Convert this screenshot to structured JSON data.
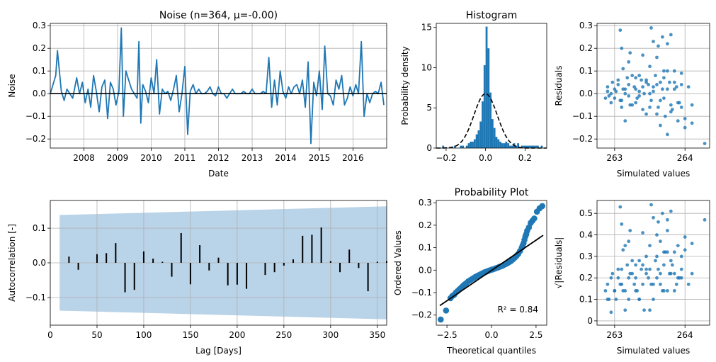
{
  "chart_data": [
    {
      "id": "noise",
      "type": "line",
      "title": "Noise (n=364, μ=-0.00)",
      "xlabel": "Date",
      "ylabel": "Noise",
      "xlim": [
        "2007-01-01",
        "2017-01-01"
      ],
      "ylim": [
        -0.24,
        0.31
      ],
      "x_ticks": [
        "2008",
        "2009",
        "2010",
        "2011",
        "2012",
        "2013",
        "2014",
        "2015",
        "2016"
      ],
      "y_ticks": [
        -0.2,
        -0.1,
        0.0,
        0.1,
        0.2,
        0.3
      ],
      "y_tick_labels": [
        "−0.2",
        "−0.1",
        "0.0",
        "0.1",
        "0.2",
        "0.3"
      ],
      "grid": true,
      "colors": {
        "series": "#1f77b4",
        "zero_line": "#000000"
      },
      "series": [
        {
          "x": [
            "2007-01-01",
            "2007-03-01",
            "2007-03-20",
            "2007-05-01",
            "2007-06-01",
            "2007-07-01",
            "2007-08-01",
            "2007-09-01",
            "2007-10-15",
            "2007-11-15",
            "2007-12-15",
            "2008-01-15",
            "2008-02-15",
            "2008-03-15",
            "2008-04-15",
            "2008-05-15",
            "2008-06-15",
            "2008-07-15",
            "2008-08-15",
            "2008-09-15",
            "2008-10-15",
            "2008-11-15",
            "2008-12-15",
            "2009-01-15",
            "2009-02-10",
            "2009-03-05",
            "2009-04-01",
            "2009-05-01",
            "2009-06-01",
            "2009-07-01",
            "2009-08-01",
            "2009-08-20",
            "2009-09-10",
            "2009-10-01",
            "2009-11-01",
            "2009-12-01",
            "2010-01-01",
            "2010-02-01",
            "2010-03-01",
            "2010-04-01",
            "2010-05-01",
            "2010-06-01",
            "2010-07-01",
            "2010-08-01",
            "2010-09-01",
            "2010-10-01",
            "2010-11-01",
            "2010-12-01",
            "2011-01-01",
            "2011-02-01",
            "2011-03-01",
            "2011-04-01",
            "2011-05-01",
            "2011-06-01",
            "2011-07-01",
            "2011-08-01",
            "2011-09-01",
            "2011-10-01",
            "2011-11-01",
            "2011-12-01",
            "2012-01-01",
            "2012-02-01",
            "2012-03-01",
            "2012-04-01",
            "2012-05-01",
            "2012-06-01",
            "2012-07-01",
            "2012-08-01",
            "2012-09-01",
            "2012-10-01",
            "2012-11-01",
            "2012-12-01",
            "2013-01-01",
            "2013-02-01",
            "2013-03-01",
            "2013-04-01",
            "2013-05-01",
            "2013-06-01",
            "2013-07-01",
            "2013-08-01",
            "2013-09-01",
            "2013-10-01",
            "2013-11-01",
            "2013-12-01",
            "2014-01-01",
            "2014-02-01",
            "2014-03-01",
            "2014-04-01",
            "2014-05-01",
            "2014-06-01",
            "2014-07-01",
            "2014-08-01",
            "2014-09-01",
            "2014-10-01",
            "2014-11-01",
            "2014-12-01",
            "2015-01-01",
            "2015-02-01",
            "2015-03-01",
            "2015-04-01",
            "2015-05-01",
            "2015-06-01",
            "2015-07-01",
            "2015-08-01",
            "2015-09-01",
            "2015-10-01",
            "2015-11-01",
            "2015-12-01",
            "2016-01-01",
            "2016-02-01",
            "2016-03-01",
            "2016-04-01",
            "2016-05-01",
            "2016-06-01",
            "2016-07-01",
            "2016-08-01",
            "2016-09-01",
            "2016-10-01",
            "2016-11-01",
            "2016-12-01"
          ],
          "y": [
            0.0,
            0.08,
            0.19,
            0.01,
            -0.03,
            0.02,
            0.0,
            -0.02,
            0.07,
            0.0,
            0.05,
            -0.04,
            0.02,
            -0.06,
            0.08,
            0.01,
            -0.08,
            0.03,
            0.06,
            -0.11,
            0.05,
            0.02,
            -0.05,
            0.01,
            0.29,
            -0.1,
            0.1,
            0.06,
            0.02,
            0.0,
            -0.02,
            0.23,
            -0.13,
            0.04,
            0.01,
            -0.04,
            0.07,
            0.0,
            0.15,
            -0.09,
            0.02,
            0.0,
            0.01,
            -0.03,
            0.02,
            0.08,
            -0.08,
            0.0,
            0.12,
            -0.18,
            0.01,
            0.04,
            0.0,
            0.02,
            0.0,
            0.0,
            0.01,
            0.03,
            0.0,
            -0.01,
            0.03,
            0.0,
            0.0,
            -0.02,
            0.0,
            0.02,
            0.0,
            0.0,
            0.0,
            0.01,
            0.0,
            0.0,
            0.02,
            0.0,
            0.0,
            0.0,
            0.01,
            0.0,
            0.16,
            -0.06,
            0.06,
            -0.05,
            0.1,
            0.01,
            -0.02,
            0.03,
            0.0,
            0.03,
            0.04,
            0.0,
            0.06,
            -0.06,
            0.14,
            -0.22,
            0.05,
            -0.01,
            0.1,
            -0.07,
            0.21,
            0.0,
            -0.01,
            -0.05,
            0.06,
            0.02,
            0.08,
            -0.05,
            -0.02,
            0.03,
            -0.01,
            0.04,
            0.0,
            0.23,
            -0.1,
            0.0,
            -0.04,
            0.0,
            0.01,
            0.0,
            0.05,
            -0.05
          ]
        },
        {
          "name": "zero",
          "y": 0.0
        }
      ]
    },
    {
      "id": "histogram",
      "type": "bar",
      "title": "Histogram",
      "xlabel": "",
      "ylabel": "Probability density",
      "xlim": [
        -0.25,
        0.31
      ],
      "ylim": [
        0,
        15.5
      ],
      "x_ticks": [
        -0.2,
        0.0,
        0.2
      ],
      "x_tick_labels": [
        "−0.2",
        "0.0",
        "0.2"
      ],
      "y_ticks": [
        0,
        5,
        10,
        15
      ],
      "grid": false,
      "colors": {
        "bars": "#1f77b4",
        "density": "#000000"
      },
      "bin_width": 0.01,
      "bin_left_edges": [
        -0.22,
        -0.16,
        -0.13,
        -0.12,
        -0.1,
        -0.09,
        -0.08,
        -0.07,
        -0.06,
        -0.05,
        -0.04,
        -0.03,
        -0.02,
        -0.01,
        0.0,
        0.01,
        0.02,
        0.03,
        0.04,
        0.05,
        0.06,
        0.07,
        0.08,
        0.09,
        0.1,
        0.11,
        0.12,
        0.13,
        0.14,
        0.15,
        0.16,
        0.18,
        0.19,
        0.2,
        0.21,
        0.22,
        0.23,
        0.24,
        0.25,
        0.26,
        0.28
      ],
      "values": [
        0.3,
        0.3,
        0.3,
        0.3,
        0.3,
        0.6,
        0.8,
        0.8,
        1.1,
        1.7,
        2.2,
        3.3,
        5.8,
        10.3,
        15.1,
        12.4,
        6.9,
        3.6,
        2.5,
        1.4,
        1.1,
        0.8,
        0.6,
        0.6,
        0.8,
        0.6,
        0.3,
        0.3,
        0.6,
        0.3,
        0.6,
        0.3,
        0.3,
        0.3,
        0.3,
        0.3,
        0.3,
        0.3,
        0.3,
        0.3,
        0.3
      ],
      "density_curve": {
        "type": "normal",
        "mean": 0.0,
        "std": 0.059,
        "style": "dashed"
      }
    },
    {
      "id": "residuals",
      "type": "scatter",
      "title": "",
      "xlabel": "Simulated values",
      "ylabel": "Residuals",
      "xlim": [
        262.75,
        264.35
      ],
      "ylim": [
        -0.24,
        0.31
      ],
      "x_ticks": [
        263,
        264
      ],
      "y_ticks": [
        -0.2,
        -0.1,
        0.0,
        0.1,
        0.2,
        0.3
      ],
      "y_tick_labels": [
        "−0.2",
        "−0.1",
        "0.0",
        "0.1",
        "0.2",
        "0.3"
      ],
      "grid": true,
      "colors": {
        "points": "#1f77b4"
      },
      "x": [
        262.87,
        262.9,
        262.95,
        263.0,
        263.05,
        263.1,
        263.15,
        263.2,
        263.25,
        263.3,
        263.35,
        263.4,
        263.45,
        263.5,
        263.55,
        263.6,
        263.65,
        263.7,
        263.75,
        263.8,
        263.85,
        263.9,
        263.95,
        264.0,
        264.05,
        264.1,
        262.9,
        262.95,
        263.0,
        263.05,
        263.1,
        263.15,
        263.2,
        263.25,
        263.3,
        263.35,
        263.4,
        263.45,
        263.5,
        263.55,
        263.6,
        263.65,
        263.7,
        263.75,
        263.8,
        263.85,
        263.9,
        263.95,
        264.0,
        262.92,
        262.97,
        263.02,
        263.08,
        263.12,
        263.18,
        263.22,
        263.28,
        263.32,
        263.38,
        263.42,
        263.48,
        263.52,
        263.58,
        263.62,
        263.68,
        263.72,
        263.78,
        263.82,
        263.88,
        263.92,
        263.1,
        263.22,
        263.4,
        263.55,
        263.7,
        263.8,
        263.12,
        263.2,
        263.35,
        263.5,
        263.62,
        263.75,
        263.08,
        263.3,
        263.6,
        263.85,
        263.15,
        263.45,
        263.65,
        263.75,
        263.95,
        264.1,
        264.28,
        263.52,
        263.68
      ],
      "y": [
        -0.02,
        0.01,
        -0.04,
        0.02,
        0.06,
        -0.03,
        0.0,
        0.04,
        -0.05,
        0.02,
        -0.01,
        0.03,
        0.05,
        -0.06,
        0.01,
        0.04,
        -0.03,
        0.07,
        0.02,
        -0.08,
        0.05,
        -0.04,
        0.09,
        -0.11,
        0.03,
        -0.05,
        0.03,
        0.0,
        -0.02,
        0.04,
        -0.06,
        0.02,
        -0.01,
        0.08,
        -0.04,
        0.01,
        -0.07,
        0.06,
        0.0,
        0.03,
        -0.09,
        0.05,
        -0.02,
        0.1,
        -0.05,
        0.02,
        -0.12,
        0.04,
        -0.15,
        -0.01,
        0.05,
        0.01,
        -0.03,
        0.02,
        0.07,
        -0.05,
        0.03,
        -0.02,
        0.06,
        0.0,
        0.04,
        -0.03,
        0.08,
        -0.06,
        0.02,
        -0.1,
        0.05,
        -0.07,
        0.03,
        -0.04,
        0.2,
        0.18,
        0.17,
        0.23,
        0.1,
        0.26,
        0.11,
        0.14,
        0.08,
        0.12,
        0.21,
        0.22,
        0.28,
        0.07,
        0.16,
        0.1,
        -0.12,
        -0.09,
        -0.14,
        -0.18,
        -0.06,
        -0.13,
        -0.22,
        0.29,
        0.25
      ]
    },
    {
      "id": "autocorrelation",
      "type": "bar",
      "title": "",
      "xlabel": "Lag [Days]",
      "ylabel": "Autocorrelation [-]",
      "xlim": [
        0,
        360
      ],
      "ylim": [
        -0.18,
        0.18
      ],
      "x_ticks": [
        0,
        50,
        100,
        150,
        200,
        250,
        300,
        350
      ],
      "y_ticks": [
        -0.1,
        0.0,
        0.1
      ],
      "y_tick_labels": [
        "−0.1",
        "0.0",
        "0.1"
      ],
      "grid": true,
      "colors": {
        "bars": "#000000",
        "confidence_band": "#b9d3e8"
      },
      "lags": [
        10,
        20,
        30,
        40,
        50,
        60,
        70,
        80,
        90,
        100,
        110,
        120,
        130,
        140,
        150,
        160,
        170,
        180,
        190,
        200,
        210,
        220,
        230,
        240,
        250,
        260,
        270,
        280,
        290,
        300,
        310,
        320,
        330,
        340,
        350,
        360
      ],
      "values": [
        0.0,
        0.018,
        -0.02,
        0.0,
        0.025,
        0.028,
        0.057,
        -0.085,
        -0.078,
        0.033,
        0.012,
        0.003,
        -0.04,
        0.086,
        -0.062,
        0.051,
        -0.022,
        0.015,
        -0.065,
        -0.063,
        -0.075,
        0.0,
        -0.035,
        -0.027,
        -0.008,
        0.01,
        0.078,
        0.081,
        0.102,
        0.005,
        -0.027,
        0.038,
        -0.015,
        -0.082,
        0.003,
        0.005
      ],
      "confidence_band": {
        "lag": [
          10,
          360
        ],
        "upper": [
          0.138,
          0.163
        ],
        "lower": [
          -0.138,
          -0.163
        ]
      }
    },
    {
      "id": "probability_plot",
      "type": "scatter",
      "title": "Probability Plot",
      "xlabel": "Theoretical quantiles",
      "ylabel": "Ordered Values",
      "xlim": [
        -3.1,
        3.1
      ],
      "ylim": [
        -0.245,
        0.31
      ],
      "x_ticks": [
        -2.5,
        0.0,
        2.5
      ],
      "x_tick_labels": [
        "−2.5",
        "0.0",
        "2.5"
      ],
      "y_ticks": [
        -0.2,
        -0.1,
        0.0,
        0.1,
        0.2,
        0.3
      ],
      "y_tick_labels": [
        "−0.2",
        "−0.1",
        "0.0",
        "0.1",
        "0.2",
        "0.3"
      ],
      "grid": false,
      "annotation": "R² = 0.84",
      "colors": {
        "points": "#1f77b4",
        "fit_line": "#000000"
      },
      "x": [
        -2.85,
        -2.55,
        -2.3,
        -2.2,
        -2.1,
        -2.0,
        -1.9,
        -1.8,
        -1.7,
        -1.6,
        -1.5,
        -1.4,
        -1.3,
        -1.2,
        -1.1,
        -1.0,
        -0.9,
        -0.8,
        -0.7,
        -0.6,
        -0.5,
        -0.4,
        -0.3,
        -0.2,
        -0.1,
        0.0,
        0.1,
        0.2,
        0.3,
        0.4,
        0.5,
        0.6,
        0.7,
        0.8,
        0.9,
        1.0,
        1.1,
        1.2,
        1.3,
        1.4,
        1.5,
        1.6,
        1.7,
        1.75,
        1.8,
        1.85,
        1.9,
        1.95,
        2.0,
        2.1,
        2.2,
        2.3,
        2.4,
        2.55,
        2.7,
        2.85
      ],
      "y": [
        -0.22,
        -0.18,
        -0.125,
        -0.115,
        -0.11,
        -0.1,
        -0.093,
        -0.085,
        -0.078,
        -0.07,
        -0.063,
        -0.057,
        -0.05,
        -0.045,
        -0.04,
        -0.035,
        -0.03,
        -0.026,
        -0.022,
        -0.018,
        -0.014,
        -0.01,
        -0.007,
        -0.004,
        -0.001,
        0.002,
        0.004,
        0.007,
        0.01,
        0.013,
        0.016,
        0.019,
        0.023,
        0.027,
        0.031,
        0.036,
        0.041,
        0.048,
        0.055,
        0.063,
        0.072,
        0.085,
        0.1,
        0.11,
        0.12,
        0.135,
        0.15,
        0.16,
        0.175,
        0.19,
        0.21,
        0.22,
        0.23,
        0.26,
        0.275,
        0.285
      ],
      "fit_line": {
        "x": [
          -2.9,
          2.9
        ],
        "y": [
          -0.158,
          0.155
        ]
      }
    },
    {
      "id": "sqrt_residuals",
      "type": "scatter",
      "title": "",
      "xlabel": "Simulated values",
      "ylabel": "√|Residuals|",
      "xlim": [
        262.75,
        264.35
      ],
      "ylim": [
        -0.02,
        0.56
      ],
      "x_ticks": [
        263,
        264
      ],
      "y_ticks": [
        0.0,
        0.1,
        0.2,
        0.3,
        0.4,
        0.5
      ],
      "grid": true,
      "colors": {
        "points": "#1f77b4"
      },
      "x": [
        262.87,
        262.9,
        262.95,
        263.0,
        263.05,
        263.1,
        263.15,
        263.2,
        263.25,
        263.3,
        263.35,
        263.4,
        263.45,
        263.5,
        263.55,
        263.6,
        263.65,
        263.7,
        263.75,
        263.8,
        263.85,
        263.9,
        263.95,
        264.0,
        264.05,
        264.1,
        262.9,
        262.95,
        263.0,
        263.05,
        263.1,
        263.15,
        263.2,
        263.25,
        263.3,
        263.35,
        263.4,
        263.45,
        263.5,
        263.55,
        263.6,
        263.65,
        263.7,
        263.75,
        263.8,
        263.85,
        263.9,
        263.95,
        264.0,
        262.92,
        262.97,
        263.02,
        263.08,
        263.12,
        263.18,
        263.22,
        263.28,
        263.32,
        263.38,
        263.42,
        263.48,
        263.52,
        263.58,
        263.62,
        263.68,
        263.72,
        263.78,
        263.82,
        263.88,
        263.92,
        263.1,
        263.22,
        263.4,
        263.55,
        263.7,
        263.8,
        263.12,
        263.2,
        263.35,
        263.5,
        263.62,
        263.75,
        263.08,
        263.3,
        263.6,
        263.85,
        263.15,
        263.45,
        263.65,
        263.75,
        263.95,
        264.1,
        264.28,
        263.52,
        263.68
      ],
      "y": [
        0.14,
        0.1,
        0.2,
        0.14,
        0.24,
        0.17,
        0.05,
        0.2,
        0.22,
        0.14,
        0.1,
        0.17,
        0.22,
        0.24,
        0.1,
        0.2,
        0.17,
        0.26,
        0.14,
        0.28,
        0.22,
        0.2,
        0.3,
        0.33,
        0.17,
        0.22,
        0.17,
        0.04,
        0.14,
        0.2,
        0.24,
        0.14,
        0.1,
        0.28,
        0.2,
        0.1,
        0.26,
        0.24,
        0.05,
        0.17,
        0.3,
        0.22,
        0.14,
        0.32,
        0.22,
        0.14,
        0.35,
        0.2,
        0.39,
        0.1,
        0.22,
        0.1,
        0.17,
        0.14,
        0.26,
        0.22,
        0.17,
        0.14,
        0.24,
        0.05,
        0.2,
        0.17,
        0.28,
        0.24,
        0.14,
        0.32,
        0.22,
        0.26,
        0.17,
        0.2,
        0.45,
        0.42,
        0.41,
        0.48,
        0.32,
        0.51,
        0.33,
        0.37,
        0.28,
        0.35,
        0.46,
        0.47,
        0.53,
        0.26,
        0.4,
        0.32,
        0.35,
        0.3,
        0.37,
        0.42,
        0.24,
        0.36,
        0.47,
        0.54,
        0.5
      ]
    }
  ]
}
